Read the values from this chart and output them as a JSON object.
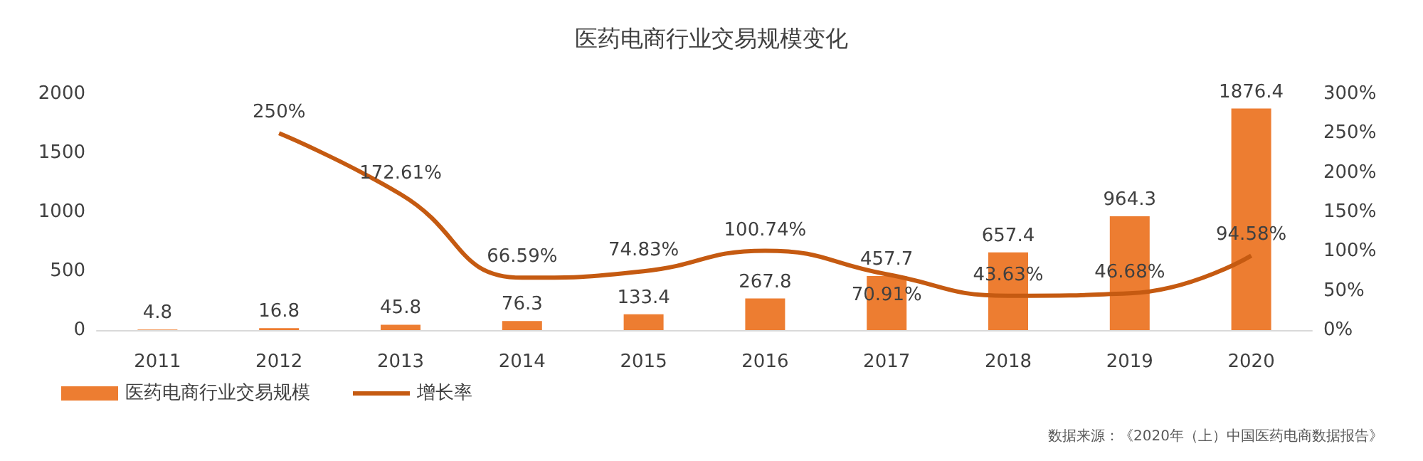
{
  "chart_data": {
    "type": "bar",
    "title": "医药电商行业交易规模变化",
    "categories": [
      "2011",
      "2012",
      "2013",
      "2014",
      "2015",
      "2016",
      "2017",
      "2018",
      "2019",
      "2020"
    ],
    "series": [
      {
        "name": "医药电商行业交易规模",
        "color": "#ed7d31",
        "values": [
          4.8,
          16.8,
          45.8,
          76.3,
          133.4,
          267.8,
          457.7,
          657.4,
          964.3,
          1876.4
        ],
        "data_labels": true
      },
      {
        "name": "增长率",
        "type": "line",
        "axis": "y2",
        "color": "#c55a11",
        "values": [
          null,
          250,
          172.61,
          66.59,
          74.83,
          100.74,
          70.91,
          43.63,
          46.68,
          94.58
        ],
        "value_labels": [
          null,
          "250%",
          "172.61%",
          "66.59%",
          "74.83%",
          "100.74%",
          "70.91%",
          "43.63%",
          "46.68%",
          "94.58%"
        ]
      }
    ],
    "ylim": [
      0,
      2000
    ],
    "yticks": [
      0,
      500,
      1000,
      1500,
      2000
    ],
    "y2lim": [
      0,
      300
    ],
    "y2ticks": [
      {
        "value": 0,
        "label": "0%"
      },
      {
        "value": 50,
        "label": "50%"
      },
      {
        "value": 100,
        "label": "100%"
      },
      {
        "value": 150,
        "label": "150%"
      },
      {
        "value": 200,
        "label": "200%"
      },
      {
        "value": 250,
        "label": "250%"
      },
      {
        "value": 300,
        "label": "300%"
      }
    ],
    "grid": false,
    "legend": "bottom left",
    "marker": "none",
    "line_style": "solid",
    "annotations": [
      "数据来源：《2020年（上）中国医药电商数据报告》"
    ]
  }
}
